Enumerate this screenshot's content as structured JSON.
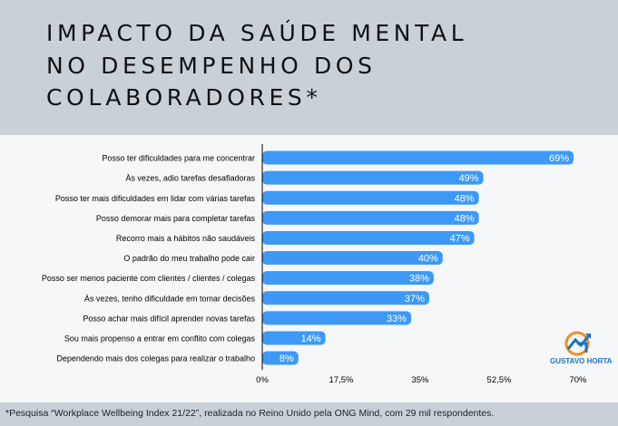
{
  "title": {
    "line1": "IMPACTO DA SAÚDE MENTAL",
    "line2": "NO DESEMPENHO DOS",
    "line3": "COLABORADORES*"
  },
  "footnote": "*Pesquisa “Workplace Wellbeing Index 21/22”, realizada no Reino Unido pela ONG Mind, com 29 mil respondentes.",
  "logo": {
    "text": "GUSTAVO HORTA",
    "colors": {
      "orange": "#f28c28",
      "blue": "#1e73be"
    }
  },
  "colors": {
    "bar": "#3d99f5",
    "label_text": "#ffffff",
    "axis": "#000000"
  },
  "chart_data": {
    "type": "bar",
    "orientation": "horizontal",
    "categories": [
      "Posso ter dificuldades para me concentrar",
      "Às vezes, adio tarefas desafiadoras",
      "Posso ter mais dificuldades em lidar com várias tarefas",
      "Posso demorar mais para completar tarefas",
      "Recorro mais a hábitos não saudáveis",
      "O padrão do meu trabalho pode cair",
      "Posso ser menos paciente com clientes / clientes / colegas",
      "Às vezes, tenho dificuldade em tomar decisões",
      "Posso achar mais difícil aprender novas tarefas",
      "Sou mais propenso a entrar em conflito com colegas",
      "Dependendo mais dos colegas para realizar o trabalho"
    ],
    "values": [
      69,
      49,
      48,
      48,
      47,
      40,
      38,
      37,
      33,
      14,
      8
    ],
    "value_labels": [
      "69%",
      "49%",
      "48%",
      "48%",
      "47%",
      "40%",
      "38%",
      "37%",
      "33%",
      "14%",
      "8%"
    ],
    "xlim": [
      0,
      70
    ],
    "xticks": [
      0,
      17.5,
      35,
      52.5,
      70
    ],
    "xtick_labels": [
      "0%",
      "17,5%",
      "35%",
      "52,5%",
      "70%"
    ],
    "grid": false,
    "legend": "none"
  }
}
